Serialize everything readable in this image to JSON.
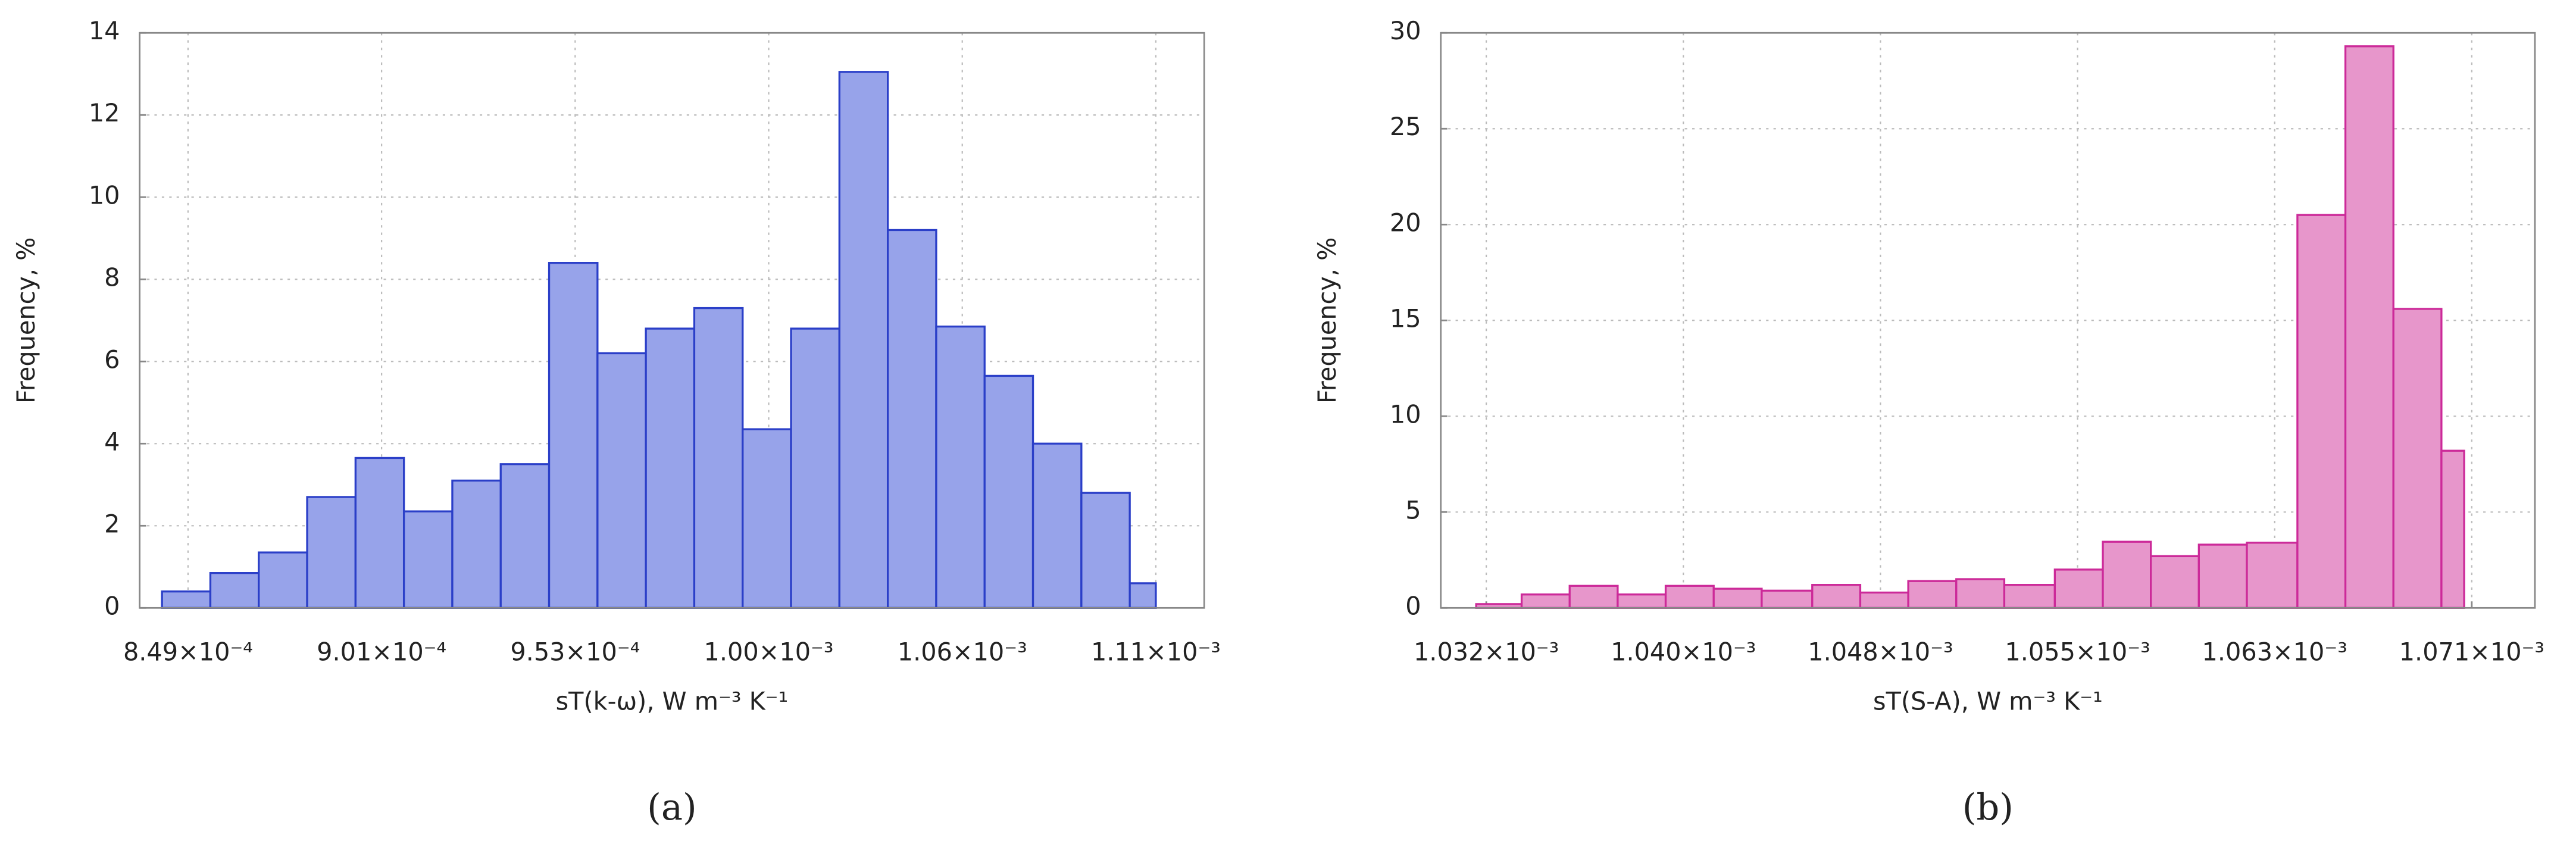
{
  "chart_data": [
    {
      "type": "histogram",
      "panel_label": "(a)",
      "xlabel": "sT(k-ω), W m⁻³ K⁻¹",
      "ylabel": "Frequency, %",
      "bins": [
        0.000842,
        0.000855,
        0.000868,
        0.000881,
        0.000894,
        0.000907,
        0.00092,
        0.000933,
        0.000946,
        0.000959,
        0.000972,
        0.000985,
        0.000998,
        0.001011,
        0.001024,
        0.001037,
        0.00105,
        0.001063,
        0.001076,
        0.001089,
        0.001102,
        0.001109
      ],
      "values": [
        0.4,
        0.85,
        1.35,
        2.7,
        3.65,
        2.35,
        3.1,
        3.5,
        8.4,
        6.2,
        6.8,
        7.3,
        4.35,
        6.8,
        13.05,
        9.2,
        6.85,
        5.65,
        4.0,
        2.8,
        0.6
      ],
      "color": "#97a3ea",
      "edgecolor": "#2b3fc8",
      "xlim": [
        0.000836,
        0.001122
      ],
      "ylim": [
        0,
        14
      ],
      "xticks": [
        {
          "value": 0.000849,
          "label": "8.49×10⁻⁴"
        },
        {
          "value": 0.000901,
          "label": "9.01×10⁻⁴"
        },
        {
          "value": 0.000953,
          "label": "9.53×10⁻⁴"
        },
        {
          "value": 0.001005,
          "label": "1.00×10⁻³"
        },
        {
          "value": 0.001057,
          "label": "1.06×10⁻³"
        },
        {
          "value": 0.001109,
          "label": "1.11×10⁻³"
        }
      ],
      "yticks": [
        0,
        2,
        4,
        6,
        8,
        10,
        12,
        14
      ],
      "grid": true
    },
    {
      "type": "histogram",
      "panel_label": "(b)",
      "xlabel": "sT(S-A), W m⁻³ K⁻¹",
      "ylabel": "Frequency, %",
      "bins": [
        0.0010316,
        0.0010334,
        0.0010353,
        0.0010372,
        0.0010391,
        0.001041,
        0.0010429,
        0.0010449,
        0.0010468,
        0.0010487,
        0.0010506,
        0.0010525,
        0.0010545,
        0.0010564,
        0.0010583,
        0.0010602,
        0.0010621,
        0.0010641,
        0.001066,
        0.0010679,
        0.0010698,
        0.0010707
      ],
      "values": [
        0.2,
        0.7,
        1.15,
        0.7,
        1.15,
        1.0,
        0.9,
        1.2,
        0.8,
        1.4,
        1.5,
        1.2,
        2.0,
        3.45,
        2.7,
        3.3,
        3.4,
        20.5,
        29.3,
        15.6,
        8.2
      ],
      "color": "#e796cb",
      "edgecolor": "#cc2a99",
      "xlim": [
        0.0010302,
        0.0010735
      ],
      "ylim": [
        0,
        30
      ],
      "xticks": [
        {
          "value": 0.001032,
          "label": "1.032×10⁻³"
        },
        {
          "value": 0.0010398,
          "label": "1.040×10⁻³"
        },
        {
          "value": 0.0010476,
          "label": "1.048×10⁻³"
        },
        {
          "value": 0.0010554,
          "label": "1.055×10⁻³"
        },
        {
          "value": 0.0010632,
          "label": "1.063×10⁻³"
        },
        {
          "value": 0.001071,
          "label": "1.071×10⁻³"
        }
      ],
      "yticks": [
        0,
        5,
        10,
        15,
        20,
        25,
        30
      ],
      "grid": true
    }
  ]
}
